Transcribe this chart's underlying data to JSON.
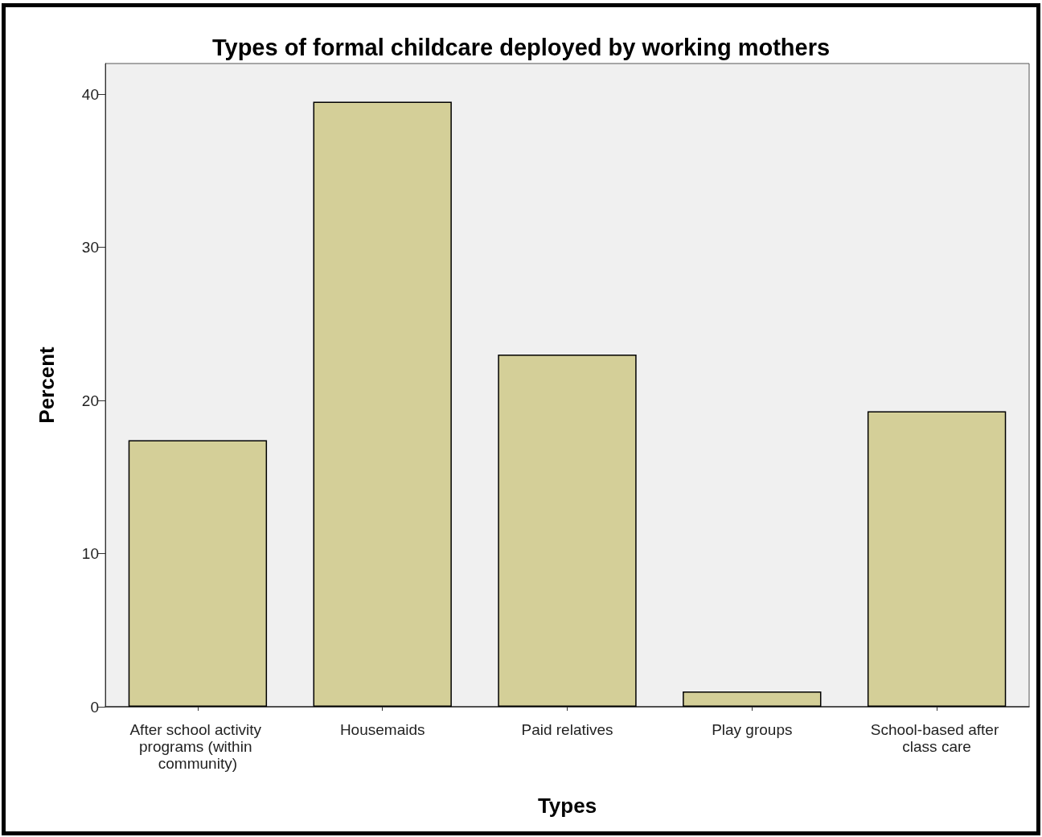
{
  "chart_data": {
    "type": "bar",
    "title": "Types of formal childcare deployed by working mothers",
    "xlabel": "Types",
    "ylabel": "Percent",
    "categories": [
      "After school activity programs (within community)",
      "Housemaids",
      "Paid relatives",
      "Play groups",
      "School-based after class care"
    ],
    "values": [
      17.4,
      39.5,
      23.0,
      1.0,
      19.3
    ],
    "color": "#d4cf98",
    "ylim": [
      0,
      42
    ],
    "yticks": [
      0,
      10,
      20,
      30,
      40
    ],
    "grid": false
  }
}
